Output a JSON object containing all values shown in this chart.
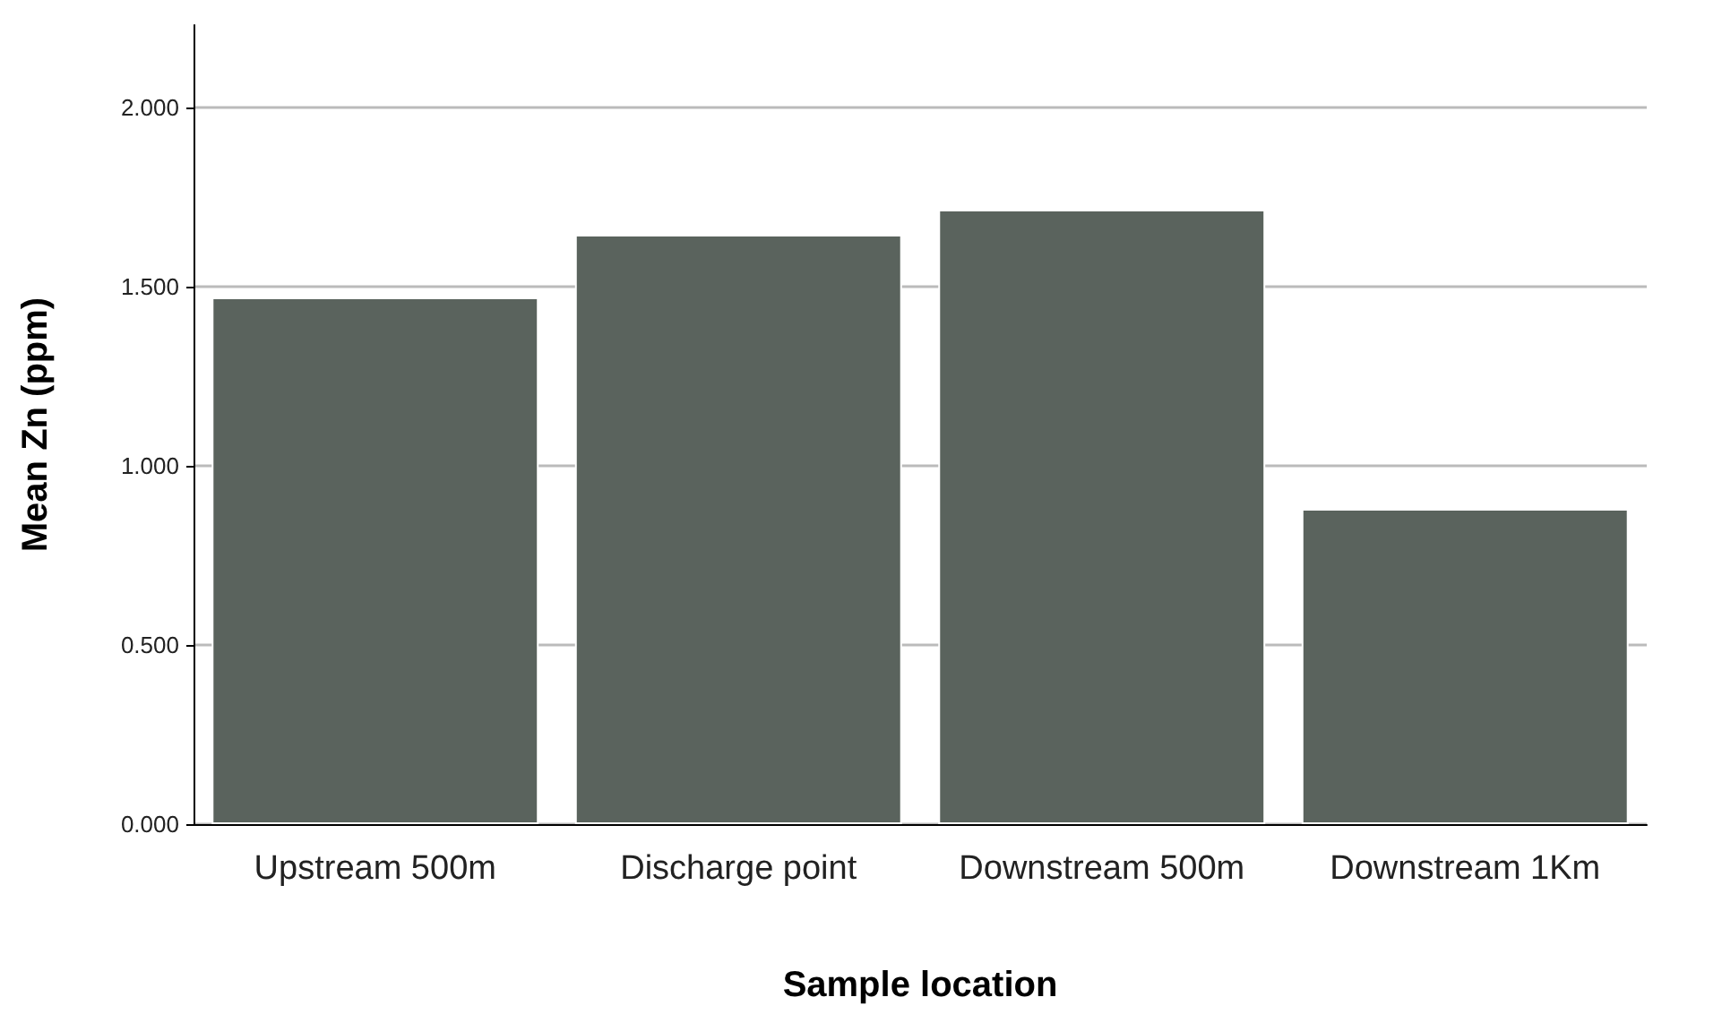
{
  "chart_data": {
    "type": "bar",
    "xlabel": "Sample location",
    "ylabel": "Mean Zn (ppm)",
    "categories": [
      "Upstream 500m",
      "Discharge point",
      "Downstream 500m",
      "Downstream 1Km"
    ],
    "values": [
      1.47,
      1.645,
      1.715,
      0.88
    ],
    "color": "#5a635d",
    "ylim": [
      0,
      2.23
    ],
    "yticks": [
      {
        "value": 0,
        "label": "0.000"
      },
      {
        "value": 0.5,
        "label": "0.500"
      },
      {
        "value": 1,
        "label": "1.000"
      },
      {
        "value": 1.5,
        "label": "1.500"
      },
      {
        "value": 2,
        "label": "2.000"
      }
    ],
    "grid": "y"
  }
}
